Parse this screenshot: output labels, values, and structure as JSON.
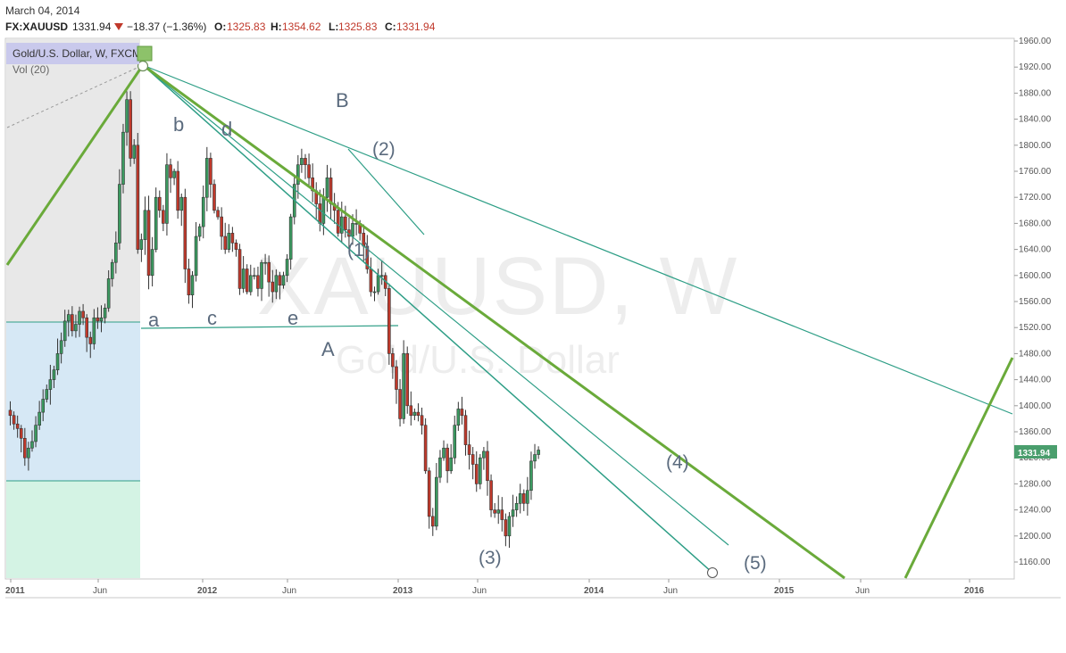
{
  "header": {
    "date": "March 04, 2014",
    "symbol": "FX:XAUUSD",
    "last": "1331.94",
    "change": "−18.37 (−1.36%)",
    "open_label": "O:",
    "open": "1325.83",
    "high_label": "H:",
    "high": "1354.62",
    "low_label": "L:",
    "low": "1325.83",
    "close_label": "C:",
    "close": "1331.94"
  },
  "legend": {
    "title": "Gold/U.S. Dollar, W, FXCM",
    "volume": "Vol (20)"
  },
  "watermark": {
    "symbol": "XAUUSD, W",
    "name": "Gold/U.S. Dollar"
  },
  "price_tag": "1331.94",
  "colors": {
    "up": "#3b9a60",
    "down": "#c0392b",
    "trend_green": "#6aaa3a",
    "channel_teal": "#2e9e86",
    "last_price_bg": "#4a9e6d",
    "zone_gray": "#e8e8e8",
    "zone_blue": "#d6e8f5",
    "zone_green": "#d4f3e4",
    "legend_bg": "#c9c9ec"
  },
  "wave_labels": {
    "a": "a",
    "b": "b",
    "c": "c",
    "d": "d",
    "e": "e",
    "A": "A",
    "B": "B",
    "w1": "(1)",
    "w2": "(2)",
    "w3": "(3)",
    "w4": "(4)",
    "w5": "(5)"
  },
  "chart_data": {
    "type": "candlestick",
    "timeframe": "weekly",
    "ylim": [
      1130,
      1965
    ],
    "y_ticks": [
      1160,
      1200,
      1240,
      1280,
      1320,
      1360,
      1400,
      1440,
      1480,
      1520,
      1560,
      1600,
      1640,
      1680,
      1720,
      1760,
      1800,
      1840,
      1880,
      1920,
      1960
    ],
    "x_ticks": [
      {
        "label": "2011",
        "bold": true
      },
      {
        "label": "Jun",
        "bold": false
      },
      {
        "label": "2012",
        "bold": true
      },
      {
        "label": "Jun",
        "bold": false
      },
      {
        "label": "2013",
        "bold": true
      },
      {
        "label": "Jun",
        "bold": false
      },
      {
        "label": "2014",
        "bold": true
      },
      {
        "label": "Jun",
        "bold": false
      },
      {
        "label": "2015",
        "bold": true
      },
      {
        "label": "Jun",
        "bold": false
      },
      {
        "label": "2016",
        "bold": true
      }
    ],
    "last_price": 1331.94,
    "closes": [
      1385,
      1372,
      1365,
      1350,
      1320,
      1335,
      1345,
      1370,
      1390,
      1410,
      1425,
      1440,
      1455,
      1480,
      1500,
      1530,
      1540,
      1515,
      1525,
      1545,
      1535,
      1505,
      1495,
      1535,
      1530,
      1535,
      1550,
      1595,
      1620,
      1650,
      1740,
      1820,
      1870,
      1780,
      1800,
      1640,
      1655,
      1700,
      1600,
      1640,
      1720,
      1700,
      1680,
      1770,
      1750,
      1760,
      1700,
      1720,
      1610,
      1570,
      1600,
      1660,
      1675,
      1720,
      1780,
      1740,
      1700,
      1690,
      1660,
      1640,
      1665,
      1650,
      1640,
      1580,
      1610,
      1575,
      1600,
      1600,
      1580,
      1620,
      1620,
      1590,
      1575,
      1600,
      1585,
      1600,
      1625,
      1690,
      1740,
      1770,
      1780,
      1770,
      1750,
      1730,
      1710,
      1680,
      1720,
      1750,
      1710,
      1700,
      1665,
      1690,
      1670,
      1660,
      1680,
      1680,
      1665,
      1645,
      1610,
      1575,
      1575,
      1600,
      1600,
      1580,
      1480,
      1460,
      1425,
      1380,
      1480,
      1400,
      1385,
      1390,
      1385,
      1370,
      1300,
      1230,
      1215,
      1290,
      1320,
      1335,
      1300,
      1320,
      1370,
      1395,
      1385,
      1340,
      1325,
      1310,
      1280,
      1320,
      1330,
      1285,
      1240,
      1235,
      1240,
      1225,
      1200,
      1230,
      1240,
      1250,
      1265,
      1250,
      1270,
      1315,
      1325,
      1331.94
    ]
  }
}
